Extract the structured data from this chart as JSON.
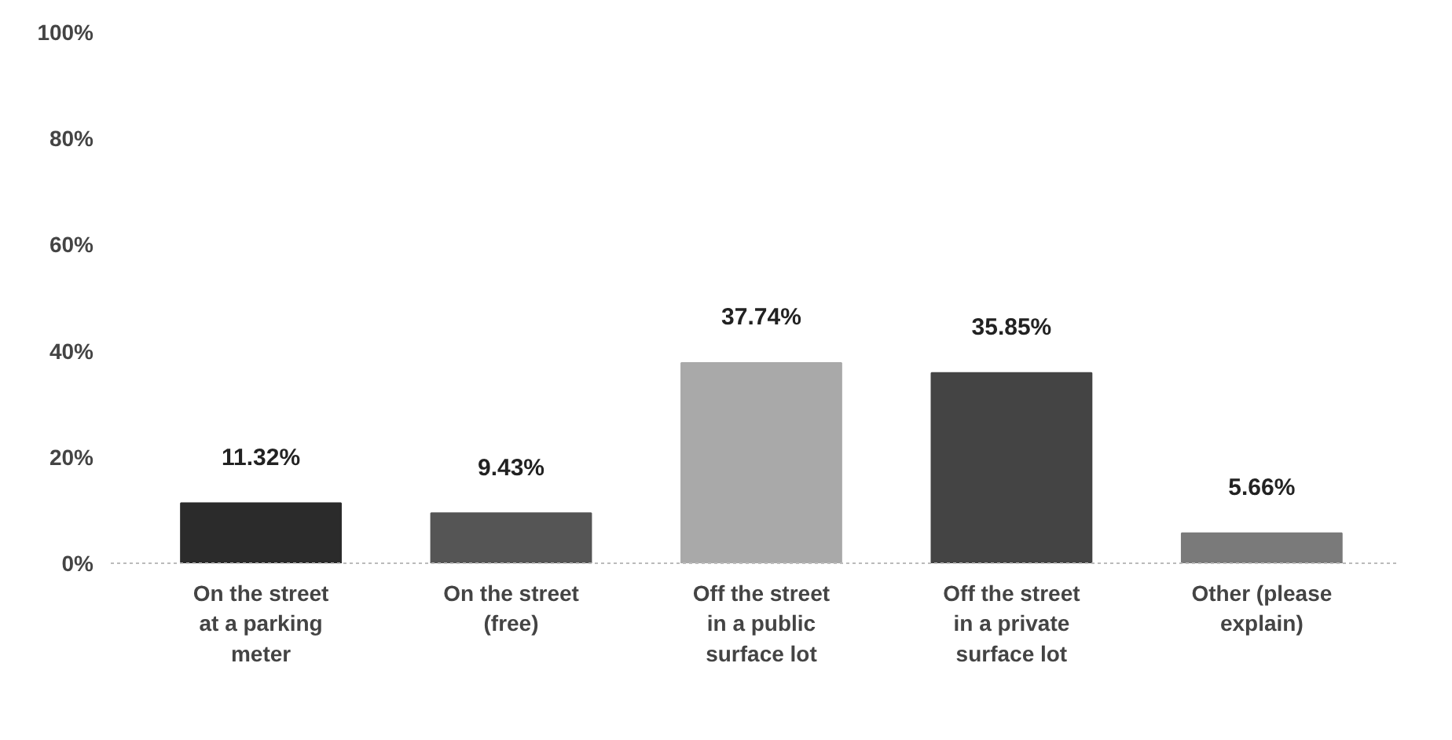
{
  "chart_data": {
    "type": "bar",
    "categories": [
      "On the street at a parking meter",
      "On the street (free)",
      "Off the street in a public surface lot",
      "Off the street in a private surface lot",
      "Other (please explain)"
    ],
    "values": [
      11.32,
      9.43,
      37.74,
      35.85,
      5.66
    ],
    "colors": [
      "#2b2b2b",
      "#555555",
      "#a9a9a9",
      "#444444",
      "#7a7a7a"
    ],
    "ylim": [
      0,
      100
    ],
    "yticks": [
      {
        "value": 0,
        "label": "0%"
      },
      {
        "value": 20,
        "label": "20%"
      },
      {
        "value": 40,
        "label": "40%"
      },
      {
        "value": 60,
        "label": "60%"
      },
      {
        "value": 80,
        "label": "80%"
      },
      {
        "value": 100,
        "label": "100%"
      }
    ],
    "value_labels": [
      "11.32%",
      "9.43%",
      "37.74%",
      "35.85%",
      "5.66%"
    ],
    "grid": false
  }
}
